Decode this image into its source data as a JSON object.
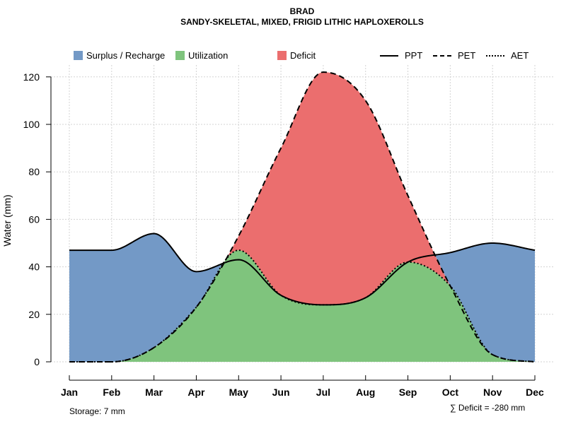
{
  "chart_data": {
    "type": "area",
    "title": "BRAD",
    "subtitle": "SANDY-SKELETAL, MIXED, FRIGID LITHIC HAPLOXEROLLS",
    "xlabel": "",
    "ylabel": "Water (mm)",
    "ylim": [
      0,
      125
    ],
    "y_ticks": [
      "0",
      "20",
      "40",
      "60",
      "80",
      "100",
      "120"
    ],
    "categories": [
      "Jan",
      "Feb",
      "Mar",
      "Apr",
      "May",
      "Jun",
      "Jul",
      "Aug",
      "Sep",
      "Oct",
      "Nov",
      "Dec"
    ],
    "series": [
      {
        "name": "PPT",
        "style": "solid",
        "values": [
          47,
          47,
          54,
          38,
          43,
          28,
          24,
          27,
          42,
          46,
          50,
          47
        ]
      },
      {
        "name": "PET",
        "style": "dashed",
        "values": [
          0,
          0,
          6,
          23,
          53,
          90,
          122,
          110,
          70,
          32,
          3,
          0
        ]
      },
      {
        "name": "AET",
        "style": "dotted",
        "values": [
          0,
          0,
          6,
          23,
          47,
          28,
          24,
          27,
          42,
          32,
          3,
          0
        ]
      }
    ],
    "legend": {
      "position": "top",
      "areas": [
        {
          "label": "Surplus / Recharge",
          "color": "#7399C6"
        },
        {
          "label": "Utilization",
          "color": "#7FC47D"
        },
        {
          "label": "Deficit",
          "color": "#EB6E6E"
        }
      ],
      "lines": [
        {
          "label": "PPT",
          "style": "solid"
        },
        {
          "label": "PET",
          "style": "dashed"
        },
        {
          "label": "AET",
          "style": "dotted"
        }
      ]
    },
    "annotations": {
      "storage": "Storage: 7 mm",
      "deficit": "∑ Deficit = -280 mm"
    },
    "grid": true
  }
}
